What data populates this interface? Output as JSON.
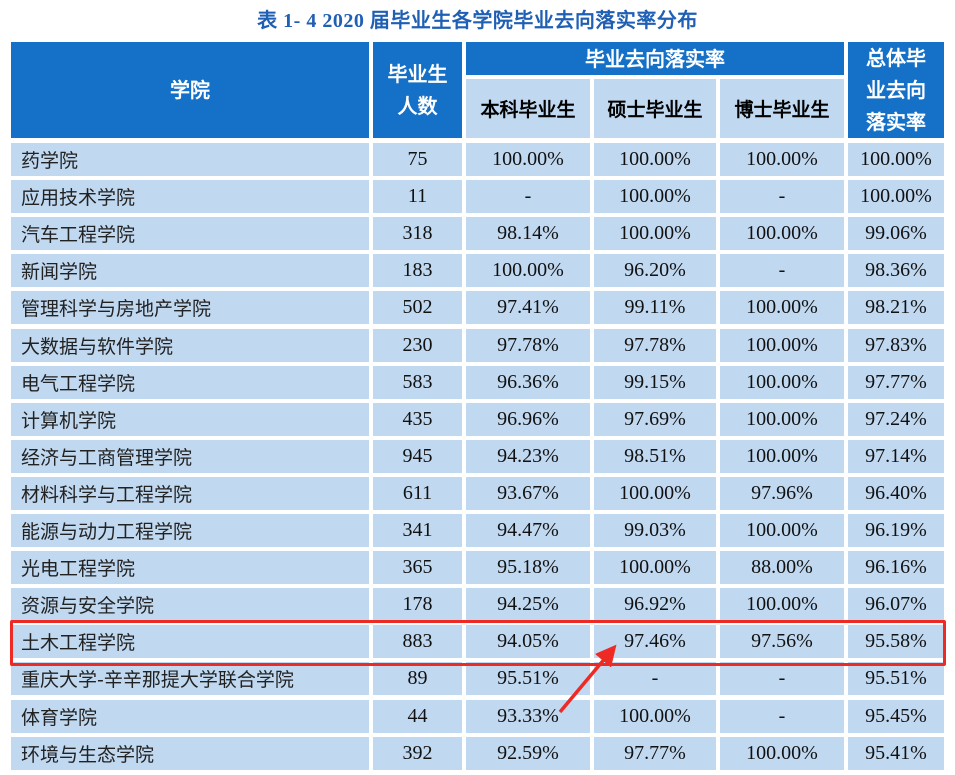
{
  "title": "表 1- 4    2020 届毕业生各学院毕业去向落实率分布",
  "header": {
    "college": "学院",
    "graduates_line1": "毕业生",
    "graduates_line2": "人数",
    "rate_group": "毕业去向落实率",
    "bachelor": "本科毕业生",
    "master": "硕士毕业生",
    "doctor": "博士毕业生",
    "overall_line1": "总体毕",
    "overall_line2": "业去向",
    "overall_line3": "落实率"
  },
  "rows": [
    {
      "college": "药学院",
      "count": "75",
      "bachelor": "100.00%",
      "master": "100.00%",
      "doctor": "100.00%",
      "overall": "100.00%"
    },
    {
      "college": "应用技术学院",
      "count": "11",
      "bachelor": "-",
      "master": "100.00%",
      "doctor": "-",
      "overall": "100.00%"
    },
    {
      "college": "汽车工程学院",
      "count": "318",
      "bachelor": "98.14%",
      "master": "100.00%",
      "doctor": "100.00%",
      "overall": "99.06%"
    },
    {
      "college": "新闻学院",
      "count": "183",
      "bachelor": "100.00%",
      "master": "96.20%",
      "doctor": "-",
      "overall": "98.36%"
    },
    {
      "college": "管理科学与房地产学院",
      "count": "502",
      "bachelor": "97.41%",
      "master": "99.11%",
      "doctor": "100.00%",
      "overall": "98.21%"
    },
    {
      "college": "大数据与软件学院",
      "count": "230",
      "bachelor": "97.78%",
      "master": "97.78%",
      "doctor": "100.00%",
      "overall": "97.83%"
    },
    {
      "college": "电气工程学院",
      "count": "583",
      "bachelor": "96.36%",
      "master": "99.15%",
      "doctor": "100.00%",
      "overall": "97.77%"
    },
    {
      "college": "计算机学院",
      "count": "435",
      "bachelor": "96.96%",
      "master": "97.69%",
      "doctor": "100.00%",
      "overall": "97.24%"
    },
    {
      "college": "经济与工商管理学院",
      "count": "945",
      "bachelor": "94.23%",
      "master": "98.51%",
      "doctor": "100.00%",
      "overall": "97.14%"
    },
    {
      "college": "材料科学与工程学院",
      "count": "611",
      "bachelor": "93.67%",
      "master": "100.00%",
      "doctor": "97.96%",
      "overall": "96.40%"
    },
    {
      "college": "能源与动力工程学院",
      "count": "341",
      "bachelor": "94.47%",
      "master": "99.03%",
      "doctor": "100.00%",
      "overall": "96.19%"
    },
    {
      "college": "光电工程学院",
      "count": "365",
      "bachelor": "95.18%",
      "master": "100.00%",
      "doctor": "88.00%",
      "overall": "96.16%"
    },
    {
      "college": "资源与安全学院",
      "count": "178",
      "bachelor": "94.25%",
      "master": "96.92%",
      "doctor": "100.00%",
      "overall": "96.07%"
    },
    {
      "college": "土木工程学院",
      "count": "883",
      "bachelor": "94.05%",
      "master": "97.46%",
      "doctor": "97.56%",
      "overall": "95.58%"
    },
    {
      "college": "重庆大学-辛辛那提大学联合学院",
      "count": "89",
      "bachelor": "95.51%",
      "master": "-",
      "doctor": "-",
      "overall": "95.51%"
    },
    {
      "college": "体育学院",
      "count": "44",
      "bachelor": "93.33%",
      "master": "100.00%",
      "doctor": "-",
      "overall": "95.45%"
    },
    {
      "college": "环境与生态学院",
      "count": "392",
      "bachelor": "92.59%",
      "master": "97.77%",
      "doctor": "100.00%",
      "overall": "95.41%"
    }
  ],
  "annotation": {
    "highlighted_row": "土木工程学院",
    "highlight_color": "#ee2a24",
    "arrow_target": "97.46%"
  },
  "colors": {
    "header_bg": "#1570c8",
    "cell_bg": "#c0d8f0",
    "title": "#1f5fb4"
  }
}
